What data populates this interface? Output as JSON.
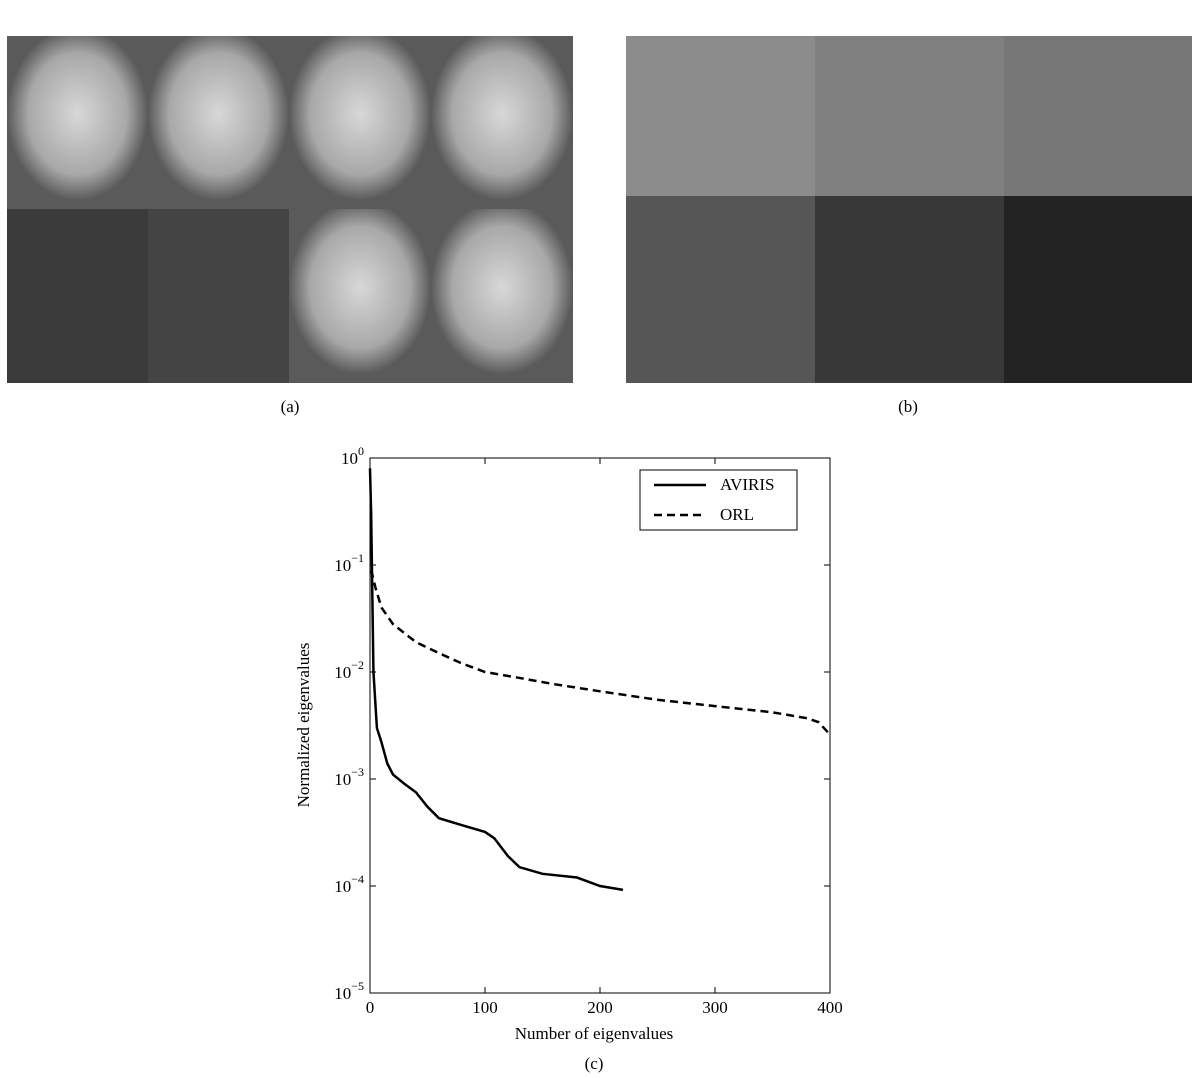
{
  "figure": {
    "labels": [
      "(a)",
      "(b)",
      "(c)"
    ]
  },
  "chart_data": {
    "type": "line",
    "xlabel": "Number of eigenvalues",
    "ylabel": "Normalized eigenvalues",
    "xlim": [
      0,
      400
    ],
    "xticks": [
      0,
      100,
      200,
      300,
      400
    ],
    "ylim": [
      1e-05,
      1
    ],
    "log_y": true,
    "yticks": [
      {
        "value": 1,
        "label": "10^0"
      },
      {
        "value": 0.1,
        "label": "10^−1"
      },
      {
        "value": 0.01,
        "label": "10^−2"
      },
      {
        "value": 0.001,
        "label": "10^−3"
      },
      {
        "value": 0.0001,
        "label": "10^−4"
      },
      {
        "value": 1e-05,
        "label": "10^−5"
      }
    ],
    "legend_position": "upper right",
    "series": [
      {
        "name": "AVIRIS",
        "color": "#000000",
        "linestyle": "solid",
        "x": [
          0,
          1,
          3,
          6,
          10,
          15,
          20,
          30,
          40,
          50,
          60,
          80,
          100,
          108,
          120,
          130,
          150,
          180,
          200,
          220
        ],
        "values": [
          0.8,
          0.3,
          0.01,
          0.003,
          0.0022,
          0.0014,
          0.0011,
          0.0009,
          0.00075,
          0.00055,
          0.00043,
          0.00037,
          0.00032,
          0.00028,
          0.00019,
          0.00015,
          0.00013,
          0.00012,
          0.0001,
          9.2e-05
        ]
      },
      {
        "name": "ORL",
        "color": "#000000",
        "linestyle": "dashed",
        "x": [
          1,
          5,
          10,
          20,
          40,
          60,
          80,
          100,
          130,
          160,
          200,
          250,
          300,
          350,
          380,
          390,
          400
        ],
        "values": [
          0.09,
          0.06,
          0.04,
          0.028,
          0.019,
          0.015,
          0.012,
          0.01,
          0.0088,
          0.0077,
          0.0066,
          0.0055,
          0.0048,
          0.0042,
          0.0037,
          0.0034,
          0.0026
        ]
      }
    ]
  }
}
